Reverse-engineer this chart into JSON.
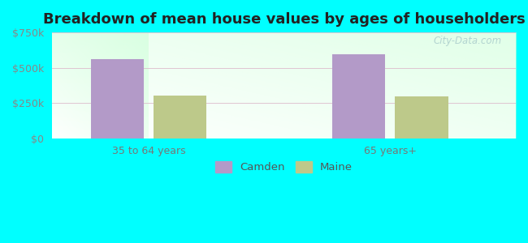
{
  "title": "Breakdown of mean house values by ages of householders",
  "title_fontsize": 13,
  "categories": [
    "35 to 64 years",
    "65 years+"
  ],
  "camden_values": [
    560000,
    595000
  ],
  "maine_values": [
    305000,
    295000
  ],
  "camden_color": "#b39ac8",
  "maine_color": "#bdc98a",
  "ylim": [
    0,
    750000
  ],
  "yticks": [
    0,
    250000,
    500000,
    750000
  ],
  "ytick_labels": [
    "$0",
    "$250k",
    "$500k",
    "$750k"
  ],
  "legend_labels": [
    "Camden",
    "Maine"
  ],
  "outer_bg": "#00ffff",
  "watermark": "City-Data.com"
}
